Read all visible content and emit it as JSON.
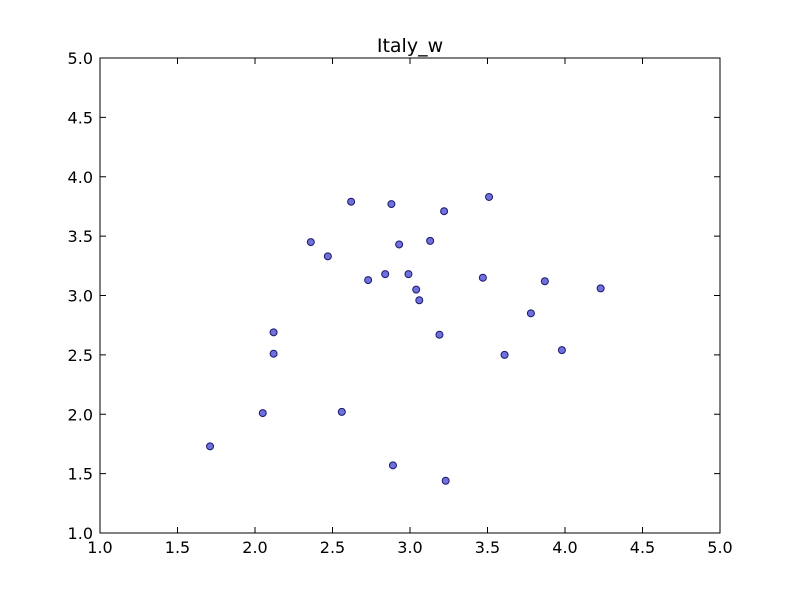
{
  "chart_data": {
    "type": "scatter",
    "title": "Italy_w",
    "xlabel": "",
    "ylabel": "",
    "xlim": [
      1.0,
      5.0
    ],
    "ylim": [
      1.0,
      5.0
    ],
    "grid": false,
    "x_ticks": [
      "1.0",
      "1.5",
      "2.0",
      "2.5",
      "3.0",
      "3.5",
      "4.0",
      "4.5",
      "5.0"
    ],
    "y_ticks": [
      "1.0",
      "1.5",
      "2.0",
      "2.5",
      "3.0",
      "3.5",
      "4.0",
      "4.5",
      "5.0"
    ],
    "point_color": "#7070dd",
    "points": [
      {
        "x": 1.71,
        "y": 1.73
      },
      {
        "x": 2.05,
        "y": 2.01
      },
      {
        "x": 2.12,
        "y": 2.69
      },
      {
        "x": 2.12,
        "y": 2.51
      },
      {
        "x": 2.36,
        "y": 3.45
      },
      {
        "x": 2.47,
        "y": 3.33
      },
      {
        "x": 2.56,
        "y": 2.02
      },
      {
        "x": 2.62,
        "y": 3.79
      },
      {
        "x": 2.73,
        "y": 3.13
      },
      {
        "x": 2.84,
        "y": 3.18
      },
      {
        "x": 2.88,
        "y": 3.77
      },
      {
        "x": 2.89,
        "y": 1.57
      },
      {
        "x": 2.93,
        "y": 3.43
      },
      {
        "x": 2.99,
        "y": 3.18
      },
      {
        "x": 3.04,
        "y": 3.05
      },
      {
        "x": 3.06,
        "y": 2.96
      },
      {
        "x": 3.13,
        "y": 3.46
      },
      {
        "x": 3.19,
        "y": 2.67
      },
      {
        "x": 3.22,
        "y": 3.71
      },
      {
        "x": 3.23,
        "y": 1.44
      },
      {
        "x": 3.47,
        "y": 3.15
      },
      {
        "x": 3.51,
        "y": 3.83
      },
      {
        "x": 3.61,
        "y": 2.5
      },
      {
        "x": 3.78,
        "y": 2.85
      },
      {
        "x": 3.87,
        "y": 3.12
      },
      {
        "x": 3.98,
        "y": 2.54
      },
      {
        "x": 4.23,
        "y": 3.06
      }
    ]
  }
}
